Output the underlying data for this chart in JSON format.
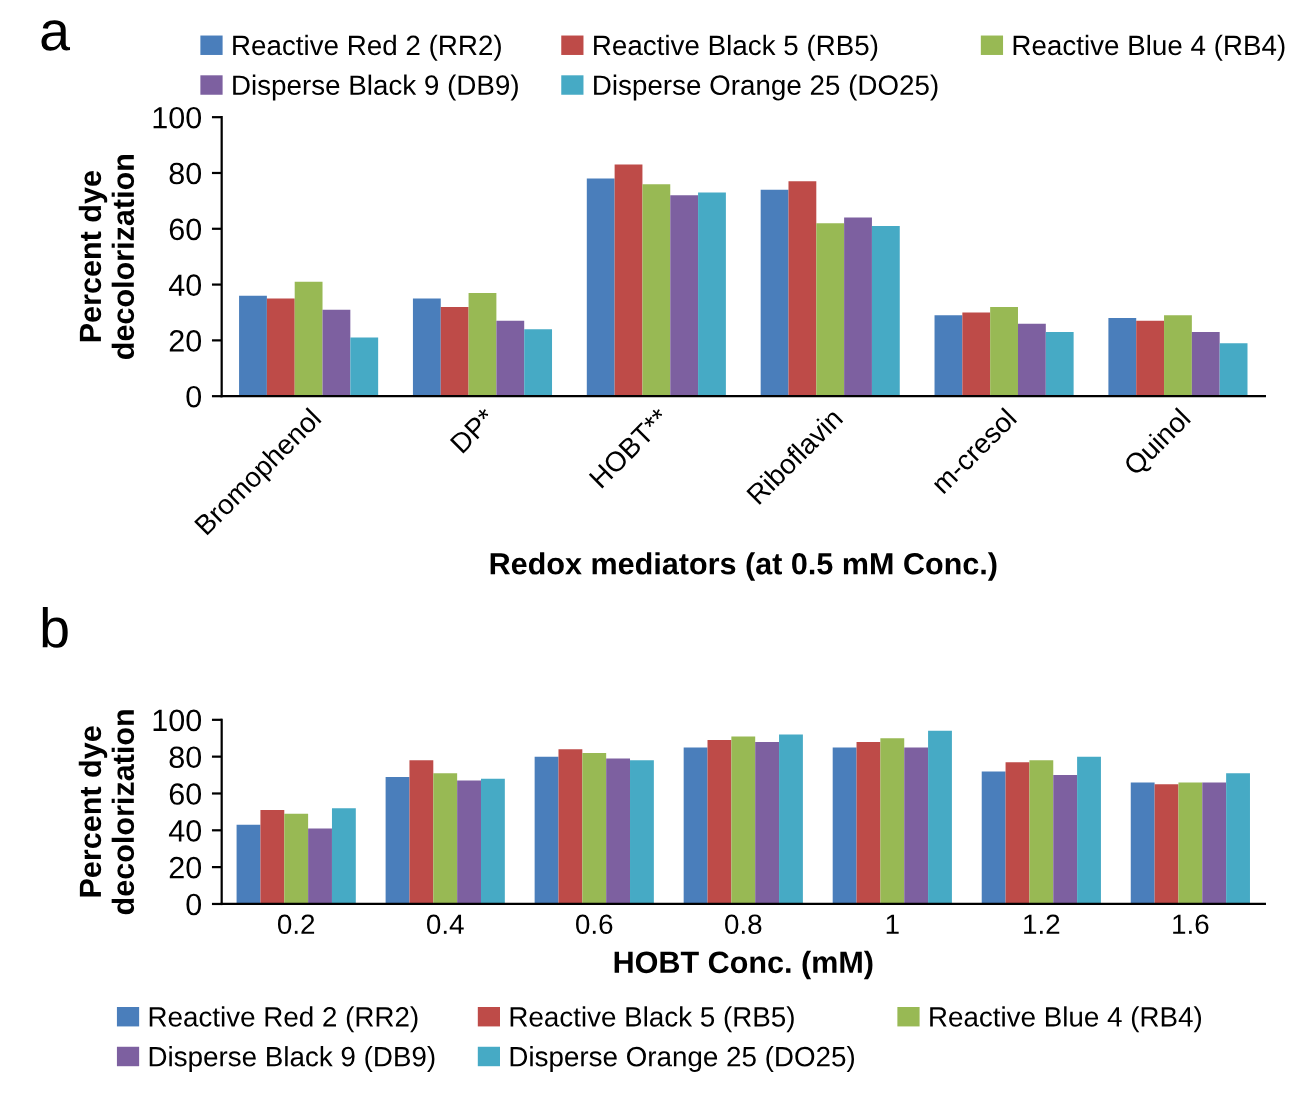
{
  "chart_data": [
    {
      "type": "bar",
      "annotations": [
        "a"
      ],
      "xlabel": "Redox mediators (at 0.5 mM Conc.)",
      "ylabel": "Percent dye\ndecolorization",
      "categories": [
        "Bromophenol",
        "DP*",
        "HOBT**",
        "Riboflavin",
        "m-cresol",
        "Quinol"
      ],
      "series": [
        {
          "name": "Reactive Red 2 (RR2)",
          "color": "#4a7ebb",
          "values": [
            36,
            35,
            78,
            74,
            29,
            28
          ]
        },
        {
          "name": "Reactive Black 5 (RB5)",
          "color": "#be4b48",
          "values": [
            35,
            32,
            83,
            77,
            30,
            27
          ]
        },
        {
          "name": "Reactive Blue 4 (RB4)",
          "color": "#98b954",
          "values": [
            41,
            37,
            76,
            62,
            32,
            29
          ]
        },
        {
          "name": "Disperse Black 9 (DB9)",
          "color": "#7d60a0",
          "values": [
            31,
            27,
            72,
            64,
            26,
            23
          ]
        },
        {
          "name": "Disperse Orange 25 (DO25)",
          "color": "#46aac5",
          "values": [
            21,
            24,
            73,
            61,
            23,
            19
          ]
        }
      ],
      "ylim": [
        0,
        100
      ],
      "yticks": [
        0,
        20,
        40,
        60,
        80,
        100
      ],
      "grid": false,
      "legend": "top"
    },
    {
      "type": "bar",
      "annotations": [
        "b"
      ],
      "xlabel": "HOBT Conc. (mM)",
      "ylabel": "Percent dye\ndecolorization",
      "categories": [
        "0.2",
        "0.4",
        "0.6",
        "0.8",
        "1",
        "1.2",
        "1.6"
      ],
      "series": [
        {
          "name": "Reactive Red 2 (RR2)",
          "color": "#4a7ebb",
          "values": [
            43,
            69,
            80,
            85,
            85,
            72,
            66
          ]
        },
        {
          "name": "Reactive Black 5 (RB5)",
          "color": "#be4b48",
          "values": [
            51,
            78,
            84,
            89,
            88,
            77,
            65
          ]
        },
        {
          "name": "Reactive Blue 4 (RB4)",
          "color": "#98b954",
          "values": [
            49,
            71,
            82,
            91,
            90,
            78,
            66
          ]
        },
        {
          "name": "Disperse Black 9 (DB9)",
          "color": "#7d60a0",
          "values": [
            41,
            67,
            79,
            88,
            85,
            70,
            66
          ]
        },
        {
          "name": "Disperse Orange 25 (DO25)",
          "color": "#46aac5",
          "values": [
            52,
            68,
            78,
            92,
            94,
            80,
            71
          ]
        }
      ],
      "ylim": [
        0,
        100
      ],
      "yticks": [
        0,
        20,
        40,
        60,
        80,
        100
      ],
      "grid": false,
      "legend": "bottom"
    }
  ]
}
